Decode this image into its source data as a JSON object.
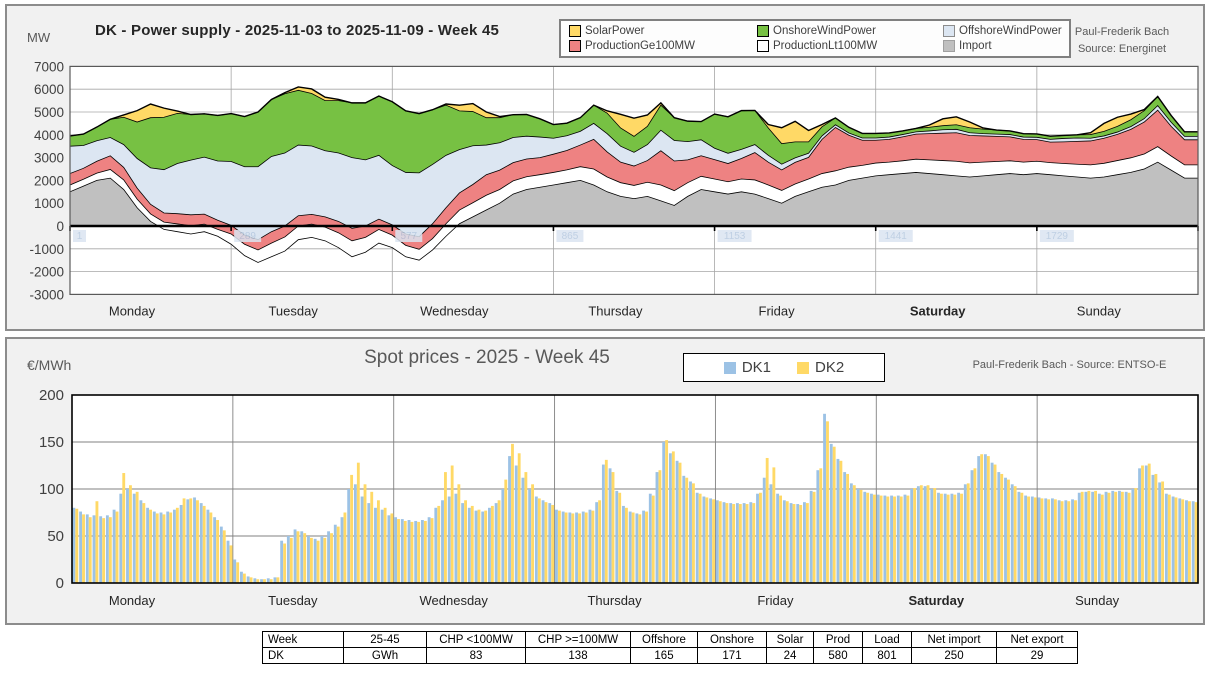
{
  "top_chart": {
    "unit_label": "MW",
    "title": "DK - Power supply - 2025-11-03 to 2025-11-09 - Week 45",
    "attribution_line1": "Paul-Frederik Bach",
    "attribution_line2": "Source: Energinet",
    "legend": [
      {
        "label": "SolarPower",
        "color": "#FFD966",
        "border": "#000000"
      },
      {
        "label": "OnshoreWindPower",
        "color": "#77C143",
        "border": "#000000"
      },
      {
        "label": "OffshoreWindPower",
        "color": "#DCE6F2",
        "border": "#8c8c8c"
      },
      {
        "label": "ProductionGe100MW",
        "color": "#EE8282",
        "border": "#000000"
      },
      {
        "label": "ProductionLt100MW",
        "color": "#FFFFFF",
        "border": "#000000"
      },
      {
        "label": "Import",
        "color": "#C0C0C0",
        "border": "#a0a0a0"
      }
    ]
  },
  "bottom_chart": {
    "unit_label": "€/MWh",
    "title": "Spot prices - 2025 - Week 45",
    "attribution": "Paul-Frederik Bach - Source: ENTSO-E",
    "legend": [
      {
        "label": "DK1",
        "color": "#9CC2E5"
      },
      {
        "label": "DK2",
        "color": "#FFD966"
      }
    ]
  },
  "summary_table": {
    "headers": [
      "Week",
      "25-45",
      "CHP <100MW",
      "CHP >=100MW",
      "Offshore",
      "Onshore",
      "Solar",
      "Prod",
      "Load",
      "Net import",
      "Net export"
    ],
    "rows": [
      [
        "DK",
        "GWh",
        "83",
        "138",
        "165",
        "171",
        "24",
        "580",
        "801",
        "250",
        "29"
      ]
    ]
  },
  "chart_data": [
    {
      "type": "area",
      "stacked": true,
      "title": "DK - Power supply - 2025-11-03 to 2025-11-09 - Week 45",
      "ylabel": "MW",
      "ylim": [
        -3000,
        7000
      ],
      "y_ticks": [
        7000,
        6000,
        5000,
        4000,
        3000,
        2000,
        1000,
        0,
        -1000,
        -2000,
        -3000
      ],
      "categories": [
        "Monday",
        "Tuesday",
        "Wednesday",
        "Thursday",
        "Friday",
        "Saturday",
        "Sunday"
      ],
      "emphasized_day": "Saturday",
      "day_start_index_labels": [
        "1",
        "289",
        "577",
        "865",
        "1153",
        "1441",
        "1729"
      ],
      "x_step_hours": 2,
      "x_range_hours": 168,
      "stack_order": [
        "Import",
        "ProductionLt100MW",
        "ProductionGe100MW",
        "OffshoreWindPower",
        "OnshoreWindPower",
        "SolarPower"
      ],
      "series": [
        {
          "name": "Import",
          "color": "#C0C0C0",
          "values": [
            1500,
            1750,
            2000,
            2100,
            1600,
            800,
            200,
            -150,
            -250,
            -350,
            -250,
            -450,
            -800,
            -1300,
            -1600,
            -1350,
            -1100,
            -600,
            -500,
            -650,
            -950,
            -1350,
            -1150,
            -750,
            -950,
            -1350,
            -1500,
            -1050,
            -450,
            100,
            400,
            700,
            1000,
            1400,
            1600,
            1700,
            1800,
            1900,
            2000,
            1800,
            1500,
            1300,
            1200,
            1300,
            1100,
            900,
            1300,
            1600,
            1500,
            1400,
            1500,
            1400,
            1200,
            1000,
            1300,
            1500,
            1700,
            1800,
            2000,
            2100,
            2200,
            2250,
            2300,
            2350,
            2300,
            2250,
            2200,
            2150,
            2200,
            2250,
            2300,
            2250,
            2300,
            2250,
            2200,
            2150,
            2100,
            2150,
            2250,
            2350,
            2500,
            2800,
            2450,
            2100
          ]
        },
        {
          "name": "ProductionLt100MW",
          "color": "#FFFFFF",
          "values": [
            300,
            300,
            320,
            380,
            420,
            380,
            330,
            320,
            340,
            360,
            330,
            300,
            450,
            500,
            550,
            600,
            620,
            600,
            580,
            600,
            650,
            700,
            650,
            600,
            550,
            500,
            480,
            500,
            550,
            600,
            620,
            650,
            600,
            580,
            560,
            550,
            550,
            560,
            600,
            700,
            650,
            600,
            580,
            620,
            700,
            650,
            600,
            580,
            560,
            540,
            560,
            620,
            600,
            560,
            540,
            560,
            600,
            620,
            580,
            560,
            560,
            550,
            560,
            580,
            600,
            620,
            640,
            620,
            600,
            580,
            560,
            550,
            540,
            530,
            540,
            560,
            580,
            600,
            620,
            640,
            660,
            680,
            620,
            580
          ]
        },
        {
          "name": "ProductionGe100MW",
          "color": "#EE8282",
          "values": [
            500,
            480,
            520,
            600,
            550,
            480,
            420,
            400,
            450,
            480,
            440,
            400,
            380,
            400,
            450,
            500,
            480,
            450,
            430,
            450,
            500,
            550,
            500,
            450,
            450,
            500,
            550,
            650,
            700,
            750,
            800,
            900,
            850,
            800,
            780,
            750,
            800,
            850,
            950,
            1300,
            1100,
            900,
            850,
            950,
            1500,
            1300,
            1000,
            900,
            850,
            800,
            900,
            1200,
            1000,
            900,
            950,
            950,
            1500,
            1900,
            1400,
            1100,
            1000,
            1000,
            1050,
            1100,
            1150,
            1200,
            1250,
            1200,
            1150,
            1100,
            1050,
            1000,
            950,
            900,
            950,
            1000,
            1050,
            1100,
            1150,
            1250,
            1400,
            1600,
            1300,
            1100
          ]
        },
        {
          "name": "OffshoreWindPower",
          "color": "#DCE6F2",
          "values": [
            1200,
            1000,
            900,
            800,
            1000,
            1300,
            1600,
            1900,
            2200,
            2400,
            2500,
            2600,
            2800,
            3000,
            3200,
            3300,
            3200,
            3100,
            3000,
            2900,
            3000,
            3100,
            2900,
            2800,
            2600,
            2700,
            2800,
            2600,
            2300,
            1900,
            1700,
            1300,
            1200,
            1100,
            1000,
            900,
            700,
            650,
            600,
            700,
            800,
            700,
            600,
            700,
            900,
            900,
            800,
            700,
            500,
            450,
            400,
            350,
            300,
            250,
            200,
            180,
            150,
            120,
            100,
            100,
            100,
            100,
            100,
            100,
            120,
            150,
            150,
            120,
            100,
            100,
            100,
            100,
            100,
            120,
            150,
            150,
            120,
            100,
            100,
            120,
            150,
            200,
            180,
            150
          ]
        },
        {
          "name": "OnshoreWindPower",
          "color": "#77C143",
          "values": [
            450,
            500,
            600,
            800,
            1200,
            1600,
            2200,
            2300,
            2200,
            2000,
            1900,
            2000,
            2100,
            2200,
            2400,
            2500,
            2600,
            2400,
            2300,
            2200,
            2300,
            2400,
            2500,
            2600,
            2800,
            2700,
            2600,
            2400,
            2200,
            1700,
            1500,
            1200,
            1100,
            1000,
            950,
            800,
            600,
            550,
            600,
            800,
            900,
            800,
            700,
            800,
            1100,
            1000,
            900,
            800,
            1500,
            1600,
            1700,
            1500,
            1200,
            900,
            700,
            500,
            400,
            300,
            250,
            200,
            200,
            180,
            160,
            150,
            160,
            180,
            200,
            220,
            200,
            180,
            160,
            150,
            150,
            140,
            130,
            140,
            160,
            200,
            250,
            300,
            350,
            400,
            300,
            200
          ]
        },
        {
          "name": "SolarPower",
          "color": "#FFD966",
          "values": [
            0,
            0,
            0,
            0,
            100,
            500,
            600,
            400,
            100,
            0,
            0,
            0,
            0,
            0,
            0,
            0,
            50,
            150,
            200,
            150,
            50,
            0,
            0,
            0,
            0,
            0,
            0,
            0,
            50,
            250,
            350,
            250,
            50,
            0,
            0,
            0,
            0,
            0,
            0,
            0,
            100,
            600,
            800,
            500,
            100,
            0,
            0,
            0,
            0,
            0,
            0,
            0,
            150,
            700,
            900,
            500,
            100,
            0,
            0,
            0,
            0,
            0,
            0,
            0,
            100,
            300,
            350,
            250,
            50,
            0,
            0,
            0,
            0,
            0,
            0,
            0,
            80,
            350,
            400,
            250,
            50,
            0,
            0,
            0
          ]
        }
      ]
    },
    {
      "type": "bar",
      "title": "Spot prices - 2025 - Week 45",
      "ylabel": "€/MWh",
      "ylim": [
        0,
        200
      ],
      "y_ticks": [
        200,
        150,
        100,
        50,
        0
      ],
      "categories": [
        "Monday",
        "Tuesday",
        "Wednesday",
        "Thursday",
        "Friday",
        "Saturday",
        "Sunday"
      ],
      "emphasized_day": "Saturday",
      "hours_per_day": 24,
      "series": [
        {
          "name": "DK1",
          "color": "#9CC2E5",
          "values": [
            80,
            76,
            73,
            72,
            71,
            72,
            78,
            95,
            100,
            95,
            88,
            80,
            76,
            75,
            76,
            78,
            83,
            89,
            91,
            85,
            78,
            70,
            60,
            45,
            25,
            12,
            7,
            5,
            4,
            5,
            6,
            45,
            50,
            57,
            55,
            50,
            47,
            50,
            55,
            62,
            70,
            100,
            105,
            92,
            85,
            80,
            78,
            72,
            70,
            68,
            67,
            66,
            67,
            70,
            80,
            88,
            92,
            95,
            85,
            80,
            77,
            76,
            80,
            85,
            100,
            135,
            125,
            112,
            100,
            92,
            88,
            85,
            78,
            76,
            75,
            75,
            76,
            78,
            86,
            126,
            122,
            98,
            82,
            76,
            74,
            77,
            95,
            118,
            150,
            138,
            130,
            114,
            108,
            96,
            92,
            90,
            88,
            86,
            85,
            85,
            85,
            86,
            95,
            112,
            105,
            95,
            88,
            85,
            84,
            86,
            98,
            120,
            180,
            148,
            132,
            118,
            106,
            100,
            97,
            95,
            94,
            93,
            93,
            93,
            94,
            100,
            103,
            103,
            100,
            96,
            95,
            95,
            96,
            105,
            120,
            135,
            137,
            128,
            118,
            112,
            105,
            97,
            93,
            92,
            91,
            90,
            90,
            88,
            88,
            89,
            96,
            97,
            97,
            95,
            97,
            98,
            98,
            97,
            100,
            122,
            125,
            115,
            107,
            95,
            92,
            90,
            88,
            87
          ]
        },
        {
          "name": "DK2",
          "color": "#FFD966",
          "values": [
            79,
            73,
            70,
            87,
            69,
            70,
            76,
            117,
            104,
            97,
            85,
            78,
            74,
            73,
            75,
            80,
            90,
            90,
            88,
            82,
            75,
            67,
            56,
            40,
            22,
            10,
            6,
            4,
            4,
            4,
            6,
            42,
            48,
            55,
            53,
            48,
            45,
            48,
            53,
            60,
            75,
            115,
            128,
            105,
            97,
            88,
            80,
            74,
            68,
            66,
            65,
            65,
            66,
            69,
            82,
            118,
            125,
            105,
            88,
            82,
            78,
            77,
            82,
            88,
            110,
            148,
            138,
            118,
            105,
            90,
            86,
            83,
            77,
            75,
            74,
            74,
            75,
            77,
            88,
            131,
            118,
            96,
            80,
            75,
            73,
            76,
            93,
            120,
            152,
            140,
            128,
            112,
            106,
            95,
            91,
            89,
            87,
            85,
            84,
            84,
            84,
            85,
            96,
            133,
            123,
            93,
            87,
            84,
            83,
            85,
            97,
            122,
            172,
            145,
            130,
            116,
            104,
            99,
            96,
            94,
            93,
            92,
            92,
            92,
            93,
            101,
            104,
            104,
            101,
            95,
            94,
            94,
            95,
            106,
            122,
            137,
            135,
            126,
            116,
            110,
            103,
            96,
            92,
            91,
            90,
            89,
            89,
            87,
            87,
            88,
            97,
            98,
            98,
            94,
            96,
            97,
            97,
            96,
            101,
            125,
            127,
            116,
            108,
            94,
            91,
            89,
            87,
            86
          ]
        }
      ]
    }
  ]
}
